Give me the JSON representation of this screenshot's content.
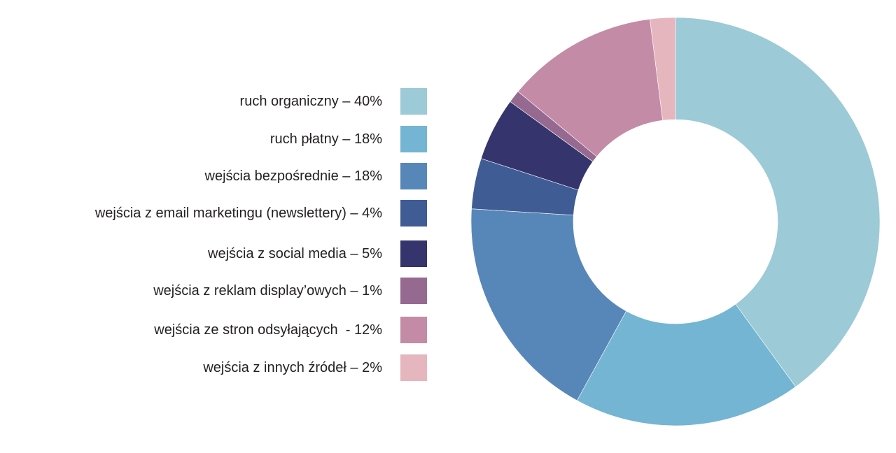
{
  "chart_data": {
    "type": "pie",
    "variant": "donut",
    "title": "",
    "legend_position": "left",
    "slices": [
      {
        "label": "ruch organiczny – 40%",
        "value": 40,
        "color": "#9ccad6"
      },
      {
        "label": "ruch płatny – 18%",
        "value": 18,
        "color": "#73b5d3"
      },
      {
        "label": "wejścia bezpośrednie – 18%",
        "value": 18,
        "color": "#5787b8"
      },
      {
        "label": "wejścia z email marketingu (newslettery) – 4%",
        "value": 4,
        "color": "#405c95"
      },
      {
        "label": "wejścia z social media – 5%",
        "value": 5,
        "color": "#35346c"
      },
      {
        "label": "wejścia z reklam display’owych – 1%",
        "value": 1,
        "color": "#966a90"
      },
      {
        "label": "wejścia ze stron odsyłających  - 12%",
        "value": 12,
        "color": "#c48ba7"
      },
      {
        "label": "wejścia z innych źródeł – 2%",
        "value": 2,
        "color": "#e6b6be"
      }
    ]
  }
}
